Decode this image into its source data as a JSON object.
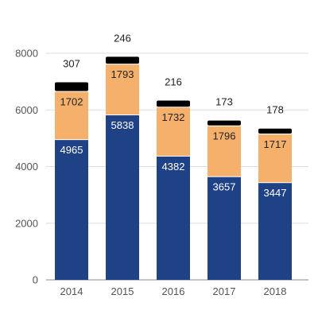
{
  "chart_data": {
    "type": "bar",
    "stacked": true,
    "title": "",
    "xlabel": "",
    "ylabel": "",
    "categories": [
      "2014",
      "2015",
      "2016",
      "2017",
      "2018"
    ],
    "series": [
      {
        "values": [
          4965,
          5838,
          4382,
          3657,
          3447
        ],
        "color": "#1f4287",
        "label_color": "#ffffff"
      },
      {
        "values": [
          1702,
          1793,
          1732,
          1796,
          1717
        ],
        "color": "#f5b06b",
        "label_color": "#222222"
      },
      {
        "values": [
          307,
          246,
          216,
          173,
          178
        ],
        "color": "#000000",
        "label_color": "#222222"
      }
    ],
    "ylim": [
      0,
      8000
    ],
    "yticks": [
      "0",
      "2000",
      "4000",
      "6000",
      "8000"
    ],
    "grid": true
  },
  "colors": {
    "grid": "#dddddd",
    "axis": "#888888"
  }
}
